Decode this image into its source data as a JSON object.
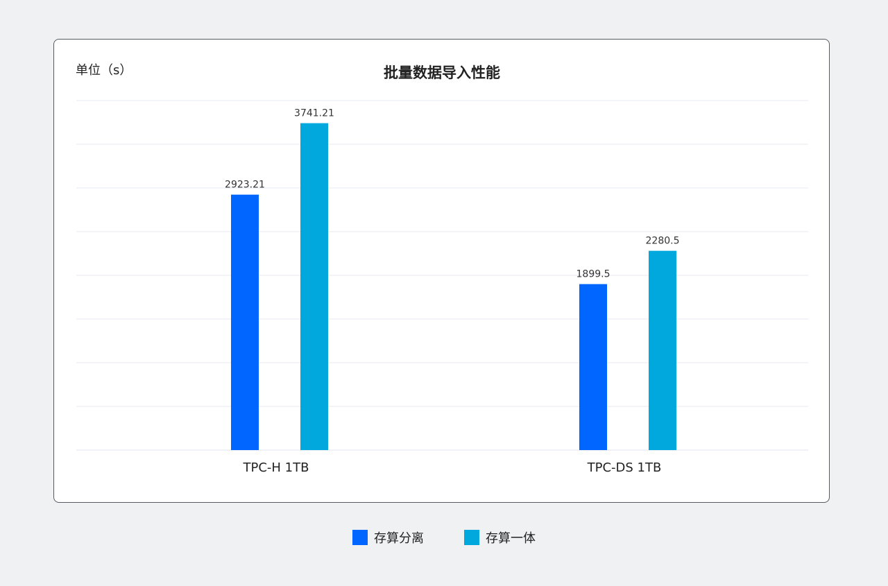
{
  "chart_data": {
    "type": "bar",
    "title": "批量数据导入性能",
    "ylabel": "单位（s）",
    "xlabel": "",
    "categories": [
      "TPC-H 1TB",
      "TPC-DS 1TB"
    ],
    "series": [
      {
        "name": "存算分离",
        "values": [
          2923.21,
          1899.5
        ],
        "labels": [
          "2923.21",
          "1899.5"
        ],
        "color": "#0066ff"
      },
      {
        "name": "存算一体",
        "values": [
          3741.21,
          2280.5
        ],
        "labels": [
          "3741.21",
          "2280.5"
        ],
        "color": "#00a8de"
      }
    ],
    "ylim": [
      0,
      4000
    ],
    "ytick_step": 500,
    "grid": true,
    "legend": "bottom-center"
  }
}
